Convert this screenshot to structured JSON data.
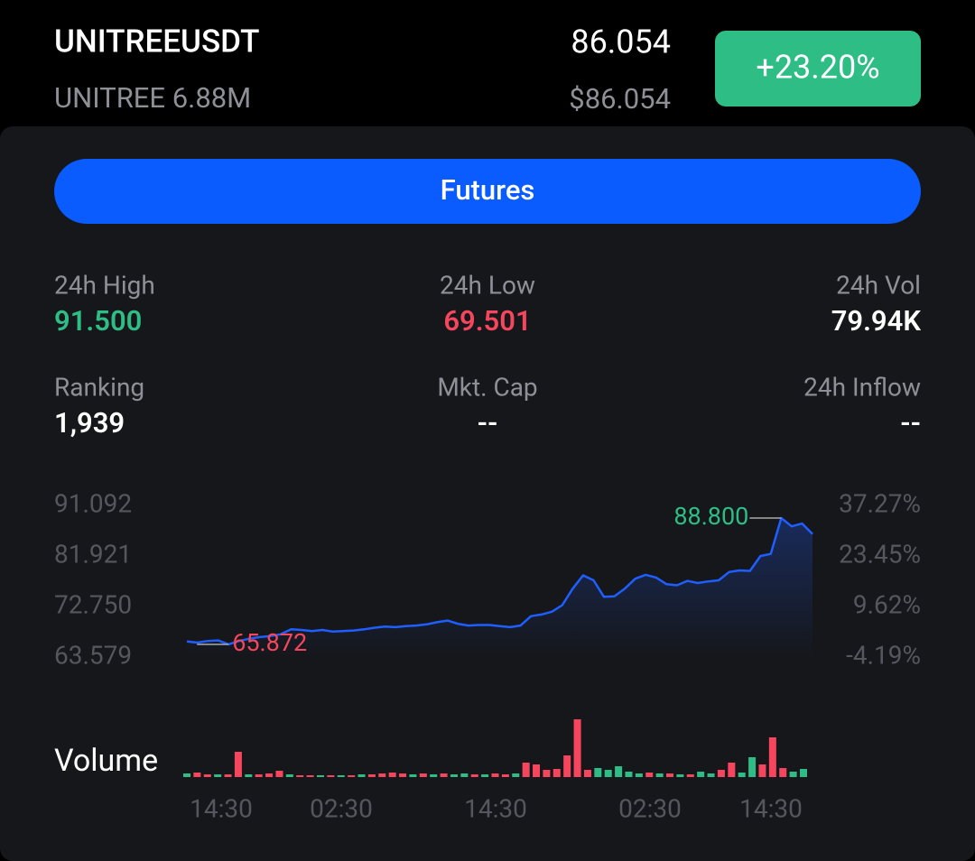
{
  "header": {
    "symbol": "UNITREEUSDT",
    "subtitle": "UNITREE 6.88M",
    "price": "86.054",
    "price_usd": "$86.054",
    "change": "+23.20%"
  },
  "button": {
    "label": "Futures"
  },
  "stats": [
    {
      "label": "24h High",
      "value": "91.500"
    },
    {
      "label": "24h Low",
      "value": "69.501"
    },
    {
      "label": "24h Vol",
      "value": "79.94K"
    },
    {
      "label": "Ranking",
      "value": "1,939"
    },
    {
      "label": "Mkt. Cap",
      "value": "--"
    },
    {
      "label": "24h Inflow",
      "value": "--"
    }
  ],
  "chart_data": {
    "type": "line",
    "ylim": [
      63.579,
      91.092
    ],
    "yticks": [
      63.579,
      {
        "value": 72.75,
        "label": "72.750"
      },
      81.921,
      91.092
    ],
    "y2lim": [
      -4.19,
      37.27
    ],
    "y2ticks": [
      {
        "value": -4.19,
        "label": "-4.19%"
      },
      {
        "value": 9.62,
        "label": "9.62%"
      },
      {
        "value": 23.45,
        "label": "23.45%"
      },
      {
        "value": 37.27,
        "label": "37.27%"
      }
    ],
    "xtick_labels": [
      "14:30",
      "02:30",
      "14:30",
      "02:30",
      "14:30"
    ],
    "high_label": "88.800",
    "low_label": "65.872",
    "series": [
      {
        "color": "#1f5eff",
        "values": [
          66.4,
          66.2,
          66.5,
          66.6,
          65.872,
          66.5,
          66.9,
          67.2,
          67.4,
          67.7,
          68.6,
          68.5,
          68.3,
          68.5,
          68.2,
          68.3,
          68.4,
          68.6,
          68.9,
          69.1,
          69.0,
          69.2,
          69.3,
          69.5,
          69.9,
          70.2,
          69.6,
          69.3,
          69.4,
          69.4,
          69.2,
          69.0,
          69.3,
          71.0,
          71.3,
          71.8,
          73.0,
          76.0,
          78.4,
          77.5,
          74.5,
          74.6,
          76.0,
          77.8,
          78.5,
          78.0,
          76.8,
          76.6,
          77.4,
          77.0,
          77.3,
          77.5,
          79.0,
          79.3,
          79.2,
          81.9,
          82.3,
          88.8,
          87.3,
          87.8,
          85.9
        ]
      }
    ],
    "volume": {
      "title": "Volume",
      "values": [
        4,
        5,
        3,
        3,
        3,
        28,
        3,
        3,
        4,
        7,
        3,
        2,
        2,
        2,
        2,
        2,
        2,
        3,
        3,
        4,
        5,
        4,
        3,
        4,
        3,
        4,
        3,
        4,
        3,
        3,
        4,
        3,
        4,
        16,
        14,
        8,
        9,
        24,
        64,
        8,
        10,
        8,
        12,
        6,
        4,
        5,
        4,
        4,
        3,
        3,
        6,
        4,
        8,
        16,
        5,
        22,
        14,
        44,
        10,
        6,
        9
      ],
      "colors": [
        "#2ebd85",
        "#f6465d",
        "#f6465d",
        "#2ebd85",
        "#f6465d",
        "#f6465d",
        "#2ebd85",
        "#f6465d",
        "#f6465d",
        "#f6465d",
        "#2ebd85",
        "#f6465d",
        "#f6465d",
        "#2ebd85",
        "#f6465d",
        "#2ebd85",
        "#f6465d",
        "#2ebd85",
        "#f6465d",
        "#f6465d",
        "#f6465d",
        "#f6465d",
        "#2ebd85",
        "#f6465d",
        "#2ebd85",
        "#f6465d",
        "#2ebd85",
        "#2ebd85",
        "#f6465d",
        "#2ebd85",
        "#f6465d",
        "#f6465d",
        "#2ebd85",
        "#f6465d",
        "#f6465d",
        "#f6465d",
        "#f6465d",
        "#f6465d",
        "#f6465d",
        "#f6465d",
        "#2ebd85",
        "#2ebd85",
        "#2ebd85",
        "#2ebd85",
        "#2ebd85",
        "#f6465d",
        "#2ebd85",
        "#f6465d",
        "#2ebd85",
        "#f6465d",
        "#2ebd85",
        "#2ebd85",
        "#f6465d",
        "#f6465d",
        "#2ebd85",
        "#2ebd85",
        "#f6465d",
        "#f6465d",
        "#f6465d",
        "#2ebd85",
        "#2ebd85"
      ]
    }
  }
}
